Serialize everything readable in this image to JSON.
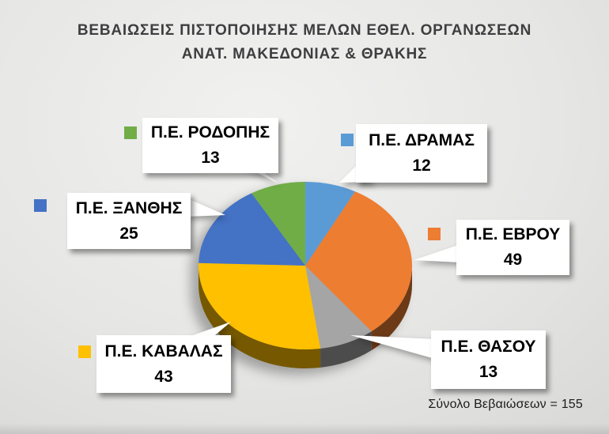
{
  "title": {
    "line1": "ΒΕΒΑΙΩΣΕΙΣ ΠΙΣΤΟΠΟΙΗΣΗΣ ΜΕΛΩΝ ΕΘΕΛ. ΟΡΓΑΝΩΣΕΩΝ",
    "line2": "ΑΝΑΤ. ΜΑΚΕΔΟΝΙΑΣ & ΘΡΑΚΗΣ",
    "color": "#3E3E40"
  },
  "total_label": "Σύνολο Βεβαιώσεων = 155",
  "chart_data": {
    "type": "pie",
    "style": "3d",
    "title": "ΒΕΒΑΙΩΣΕΙΣ ΠΙΣΤΟΠΟΙΗΣΗΣ ΜΕΛΩΝ ΕΘΕΛ. ΟΡΓΑΝΩΣΕΩΝ ΑΝΑΤ. ΜΑΚΕΔΟΝΙΑΣ & ΘΡΑΚΗΣ",
    "total": 155,
    "total_annotation": "Σύνολο Βεβαιώσεων = 155",
    "start_angle_deg": 0,
    "direction": "clockwise",
    "legend_position": "callout-labels",
    "slices": [
      {
        "label": "Π.Ε. ΔΡΑΜΑΣ",
        "value": 12,
        "color": "#5B9BD5",
        "has_marker": true
      },
      {
        "label": "Π.Ε. ΕΒΡΟΥ",
        "value": 49,
        "color": "#ED7D31",
        "has_marker": true
      },
      {
        "label": "Π.Ε. ΘΑΣΟΥ",
        "value": 13,
        "color": "#A5A5A5",
        "has_marker": false
      },
      {
        "label": "Π.Ε. ΚΑΒΑΛΑΣ",
        "value": 43,
        "color": "#FFC000",
        "has_marker": true
      },
      {
        "label": "Π.Ε. ΞΑΝΘΗΣ",
        "value": 25,
        "color": "#4472C4",
        "has_marker": true
      },
      {
        "label": "Π.Ε. ΡΟΔΟΠΗΣ",
        "value": 13,
        "color": "#70AD47",
        "has_marker": true
      }
    ]
  }
}
